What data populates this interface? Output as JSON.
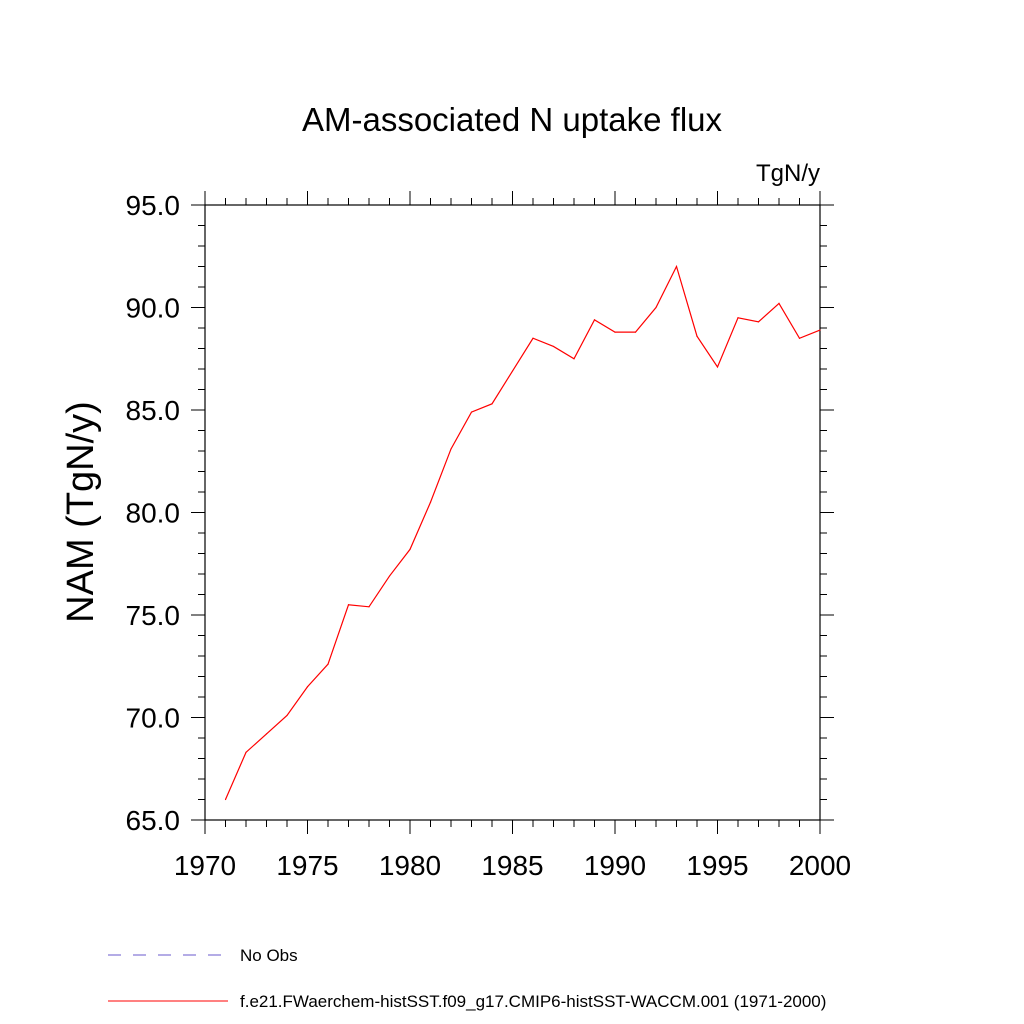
{
  "chart_data": {
    "type": "line",
    "title": "AM-associated N uptake flux",
    "units": "TgN/y",
    "ylabel": "NAM  (TgN/y)",
    "xlabel": "",
    "xlim": [
      1970,
      2000
    ],
    "ylim": [
      65.0,
      95.0
    ],
    "x_ticks": [
      1970,
      1975,
      1980,
      1985,
      1990,
      1995,
      2000
    ],
    "x_tick_labels": [
      "1970",
      "1975",
      "1980",
      "1985",
      "1990",
      "1995",
      "2000"
    ],
    "y_ticks": [
      65.0,
      70.0,
      75.0,
      80.0,
      85.0,
      90.0,
      95.0
    ],
    "y_tick_labels": [
      "65.0",
      "70.0",
      "75.0",
      "80.0",
      "85.0",
      "90.0",
      "95.0"
    ],
    "grid": false,
    "legend_placement": "bottom-left below plot",
    "series": [
      {
        "name": "f.e21.FWaerchem-histSST.f09_g17.CMIP6-histSST-WACCM.001 (1971-2000)",
        "color": "#ff0000",
        "style": "solid",
        "x": [
          1971,
          1972,
          1973,
          1974,
          1975,
          1976,
          1977,
          1978,
          1979,
          1980,
          1981,
          1982,
          1983,
          1984,
          1985,
          1986,
          1987,
          1988,
          1989,
          1990,
          1991,
          1992,
          1993,
          1994,
          1995,
          1996,
          1997,
          1998,
          1999,
          2000
        ],
        "values": [
          66.0,
          68.3,
          69.2,
          70.1,
          71.5,
          72.6,
          75.5,
          75.4,
          76.9,
          78.2,
          80.5,
          83.1,
          84.9,
          85.3,
          86.9,
          88.5,
          88.1,
          87.5,
          89.4,
          88.8,
          88.8,
          90.0,
          92.0,
          88.6,
          87.1,
          89.5,
          89.3,
          90.2,
          88.5,
          88.9
        ]
      }
    ],
    "legend": [
      {
        "label": "No Obs",
        "color": "#6a5acd",
        "style": "dashed"
      },
      {
        "label": "f.e21.FWaerchem-histSST.f09_g17.CMIP6-histSST-WACCM.001 (1971-2000)",
        "color": "#ff0000",
        "style": "solid"
      }
    ]
  }
}
